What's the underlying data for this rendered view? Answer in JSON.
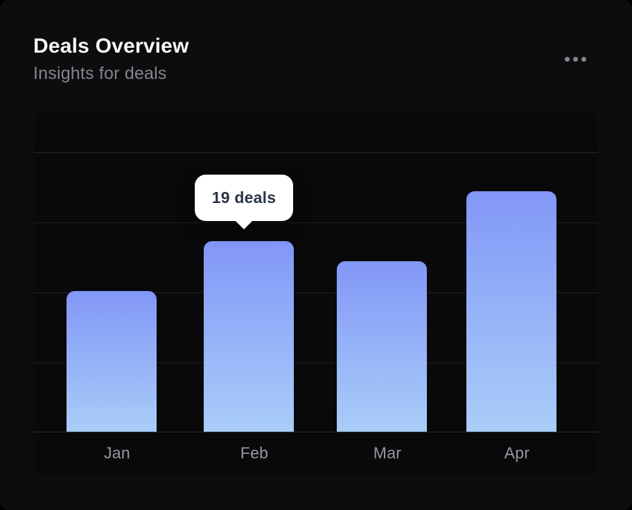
{
  "header": {
    "title": "Deals Overview",
    "subtitle": "Insights for deals",
    "menu_icon": "ellipsis-horizontal"
  },
  "tooltip": {
    "text": "19 deals"
  },
  "chart_data": {
    "type": "bar",
    "title": "Deals Overview",
    "subtitle": "Insights for deals",
    "categories": [
      "Jan",
      "Feb",
      "Mar",
      "Apr"
    ],
    "values": [
      14,
      19,
      17,
      24
    ],
    "unit": "deals",
    "highlight": {
      "category": "Feb",
      "value": 19,
      "label": "19 deals"
    },
    "xlabel": "",
    "ylabel": "",
    "ylim": [
      0,
      32
    ],
    "grid": "horizontal",
    "legend": "none",
    "colors": {
      "bar_gradient_top": "#8297f7",
      "bar_gradient_bottom": "#a9cdf8",
      "tooltip_bg": "#ffffff",
      "tooltip_text": "#2b3448",
      "card_bg": "#09090b",
      "page_bg": "#0d0d0f",
      "grid_line": "#202024",
      "axis_label": "#98989e"
    }
  }
}
